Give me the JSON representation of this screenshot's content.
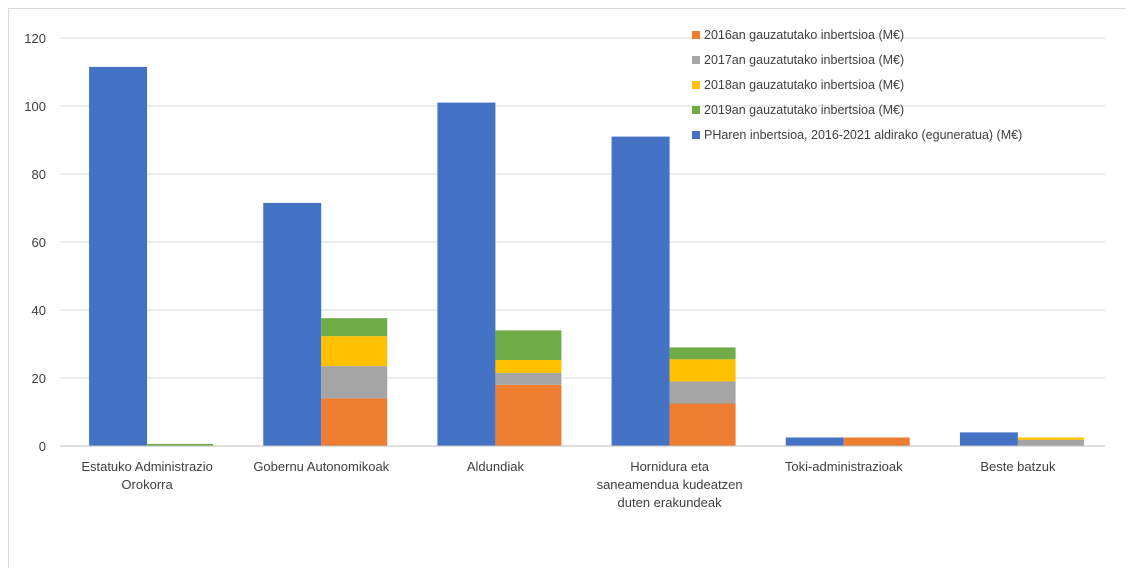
{
  "chart_data": {
    "type": "bar",
    "title": "",
    "xlabel": "",
    "ylabel": "",
    "ylim": [
      0,
      120
    ],
    "yticks": [
      0,
      20,
      40,
      60,
      80,
      100,
      120
    ],
    "grid": "horizontal",
    "legend_position": "top-right",
    "categories": [
      [
        "Estatuko Administrazio",
        "Orokorra"
      ],
      [
        "Gobernu Autonomikoak"
      ],
      [
        "Aldundiak"
      ],
      [
        "Hornidura eta",
        "saneamendua kudeatzen",
        "duten erakundeak"
      ],
      [
        "Toki-administrazioak"
      ],
      [
        "Beste batzuk"
      ]
    ],
    "plan_series": {
      "name": "PHaren inbertsioa, 2016-2021 aldirako (eguneratua) (M€)",
      "color": "#4472C4",
      "values": [
        111.5,
        71.5,
        101,
        91,
        2.5,
        4
      ]
    },
    "stacked_series": [
      {
        "name": "2016an gauzatutako inbertsioa (M€)",
        "color": "#ED7D31",
        "values": [
          0,
          14,
          18,
          12.5,
          2.5,
          0
        ]
      },
      {
        "name": "2017an gauzatutako inbertsioa (M€)",
        "color": "#A5A5A5",
        "values": [
          0,
          9.5,
          3.5,
          6.5,
          0,
          1.8
        ]
      },
      {
        "name": "2018an gauzatutako inbertsioa (M€)",
        "color": "#FFC000",
        "values": [
          0,
          8.8,
          3.8,
          6.5,
          0,
          0.7
        ]
      },
      {
        "name": "2019an gauzatutako inbertsioa (M€)",
        "color": "#70AD47",
        "values": [
          0.6,
          5.3,
          8.7,
          3.5,
          0,
          0
        ]
      }
    ],
    "legend_order": [
      "2016an gauzatutako inbertsioa (M€)",
      "2017an gauzatutako inbertsioa (M€)",
      "2018an gauzatutako inbertsioa (M€)",
      "2019an gauzatutako inbertsioa (M€)",
      "PHaren inbertsioa, 2016-2021 aldirako (eguneratua) (M€)"
    ]
  }
}
